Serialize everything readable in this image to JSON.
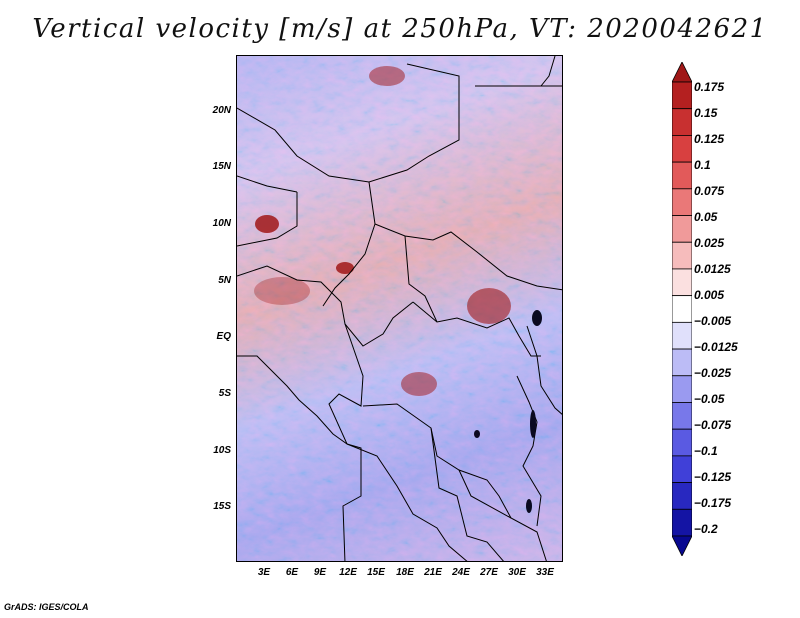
{
  "title": "Vertical velocity [m/s] at 250hPa, VT: 2020042621",
  "credit": "GrADS: IGES/COLA",
  "map": {
    "variable": "Vertical velocity",
    "units": "m/s",
    "level": "250hPa",
    "valid_time": "2020042621",
    "lat_range": [
      -20,
      25
    ],
    "lon_range": [
      0,
      35
    ],
    "y_ticks": [
      {
        "lat": 20,
        "label": "20N"
      },
      {
        "lat": 15,
        "label": "15N"
      },
      {
        "lat": 10,
        "label": "10N"
      },
      {
        "lat": 5,
        "label": "5N"
      },
      {
        "lat": 0,
        "label": "EQ"
      },
      {
        "lat": -5,
        "label": "5S"
      },
      {
        "lat": -10,
        "label": "10S"
      },
      {
        "lat": -15,
        "label": "15S"
      }
    ],
    "x_ticks": [
      {
        "lon": 3,
        "label": "3E"
      },
      {
        "lon": 6,
        "label": "6E"
      },
      {
        "lon": 9,
        "label": "9E"
      },
      {
        "lon": 12,
        "label": "12E"
      },
      {
        "lon": 15,
        "label": "15E"
      },
      {
        "lon": 18,
        "label": "18E"
      },
      {
        "lon": 21,
        "label": "21E"
      },
      {
        "lon": 24,
        "label": "24E"
      },
      {
        "lon": 27,
        "label": "27E"
      },
      {
        "lon": 30,
        "label": "30E"
      },
      {
        "lon": 33,
        "label": "33E"
      }
    ]
  },
  "colorbar": {
    "labels": [
      "0.175",
      "0.15",
      "0.125",
      "0.1",
      "0.075",
      "0.05",
      "0.025",
      "0.0125",
      "0.005",
      "−0.005",
      "−0.0125",
      "−0.025",
      "−0.05",
      "−0.075",
      "−0.1",
      "−0.125",
      "−0.175",
      "−0.2"
    ],
    "colors": [
      "#a01818",
      "#b42020",
      "#c83030",
      "#d84040",
      "#e25a5a",
      "#ea7878",
      "#f09a9a",
      "#f6bcbc",
      "#fbe0e0",
      "#ffffff",
      "#e0e0fb",
      "#bcbcf6",
      "#9a9af0",
      "#7878ea",
      "#5a5ae2",
      "#4040d8",
      "#2828c0",
      "#1414a4",
      "#080890"
    ]
  }
}
